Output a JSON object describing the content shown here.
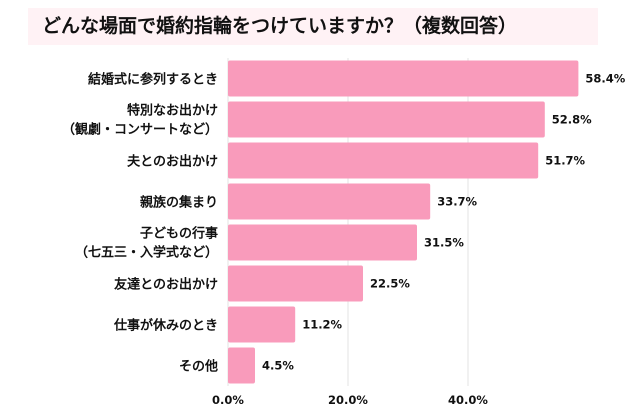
{
  "chart_data": {
    "type": "bar",
    "orientation": "horizontal",
    "title": "どんな場面で婚約指輪をつけていますか？（複数回答）",
    "categories": [
      [
        "結婚式に参列するとき"
      ],
      [
        "特別なお出かけ",
        "（観劇・コンサートなど）"
      ],
      [
        "夫とのお出かけ"
      ],
      [
        "親族の集まり"
      ],
      [
        "子どもの行事",
        "（七五三・入学式など）"
      ],
      [
        "友達とのお出かけ"
      ],
      [
        "仕事が休みのとき"
      ],
      [
        "その他"
      ]
    ],
    "values": [
      58.4,
      52.8,
      51.7,
      33.7,
      31.5,
      22.5,
      11.2,
      4.5
    ],
    "value_labels": [
      "58.4%",
      "52.8%",
      "51.7%",
      "33.7%",
      "31.5%",
      "22.5%",
      "11.2%",
      "4.5%"
    ],
    "xticks": [
      0,
      20,
      40
    ],
    "xtick_labels": [
      "0.0%",
      "20.0%",
      "40.0%"
    ],
    "xlim": [
      0,
      60
    ],
    "grid": true,
    "bar_color": "#f99bbb",
    "title_bg": "#fff2f5"
  }
}
